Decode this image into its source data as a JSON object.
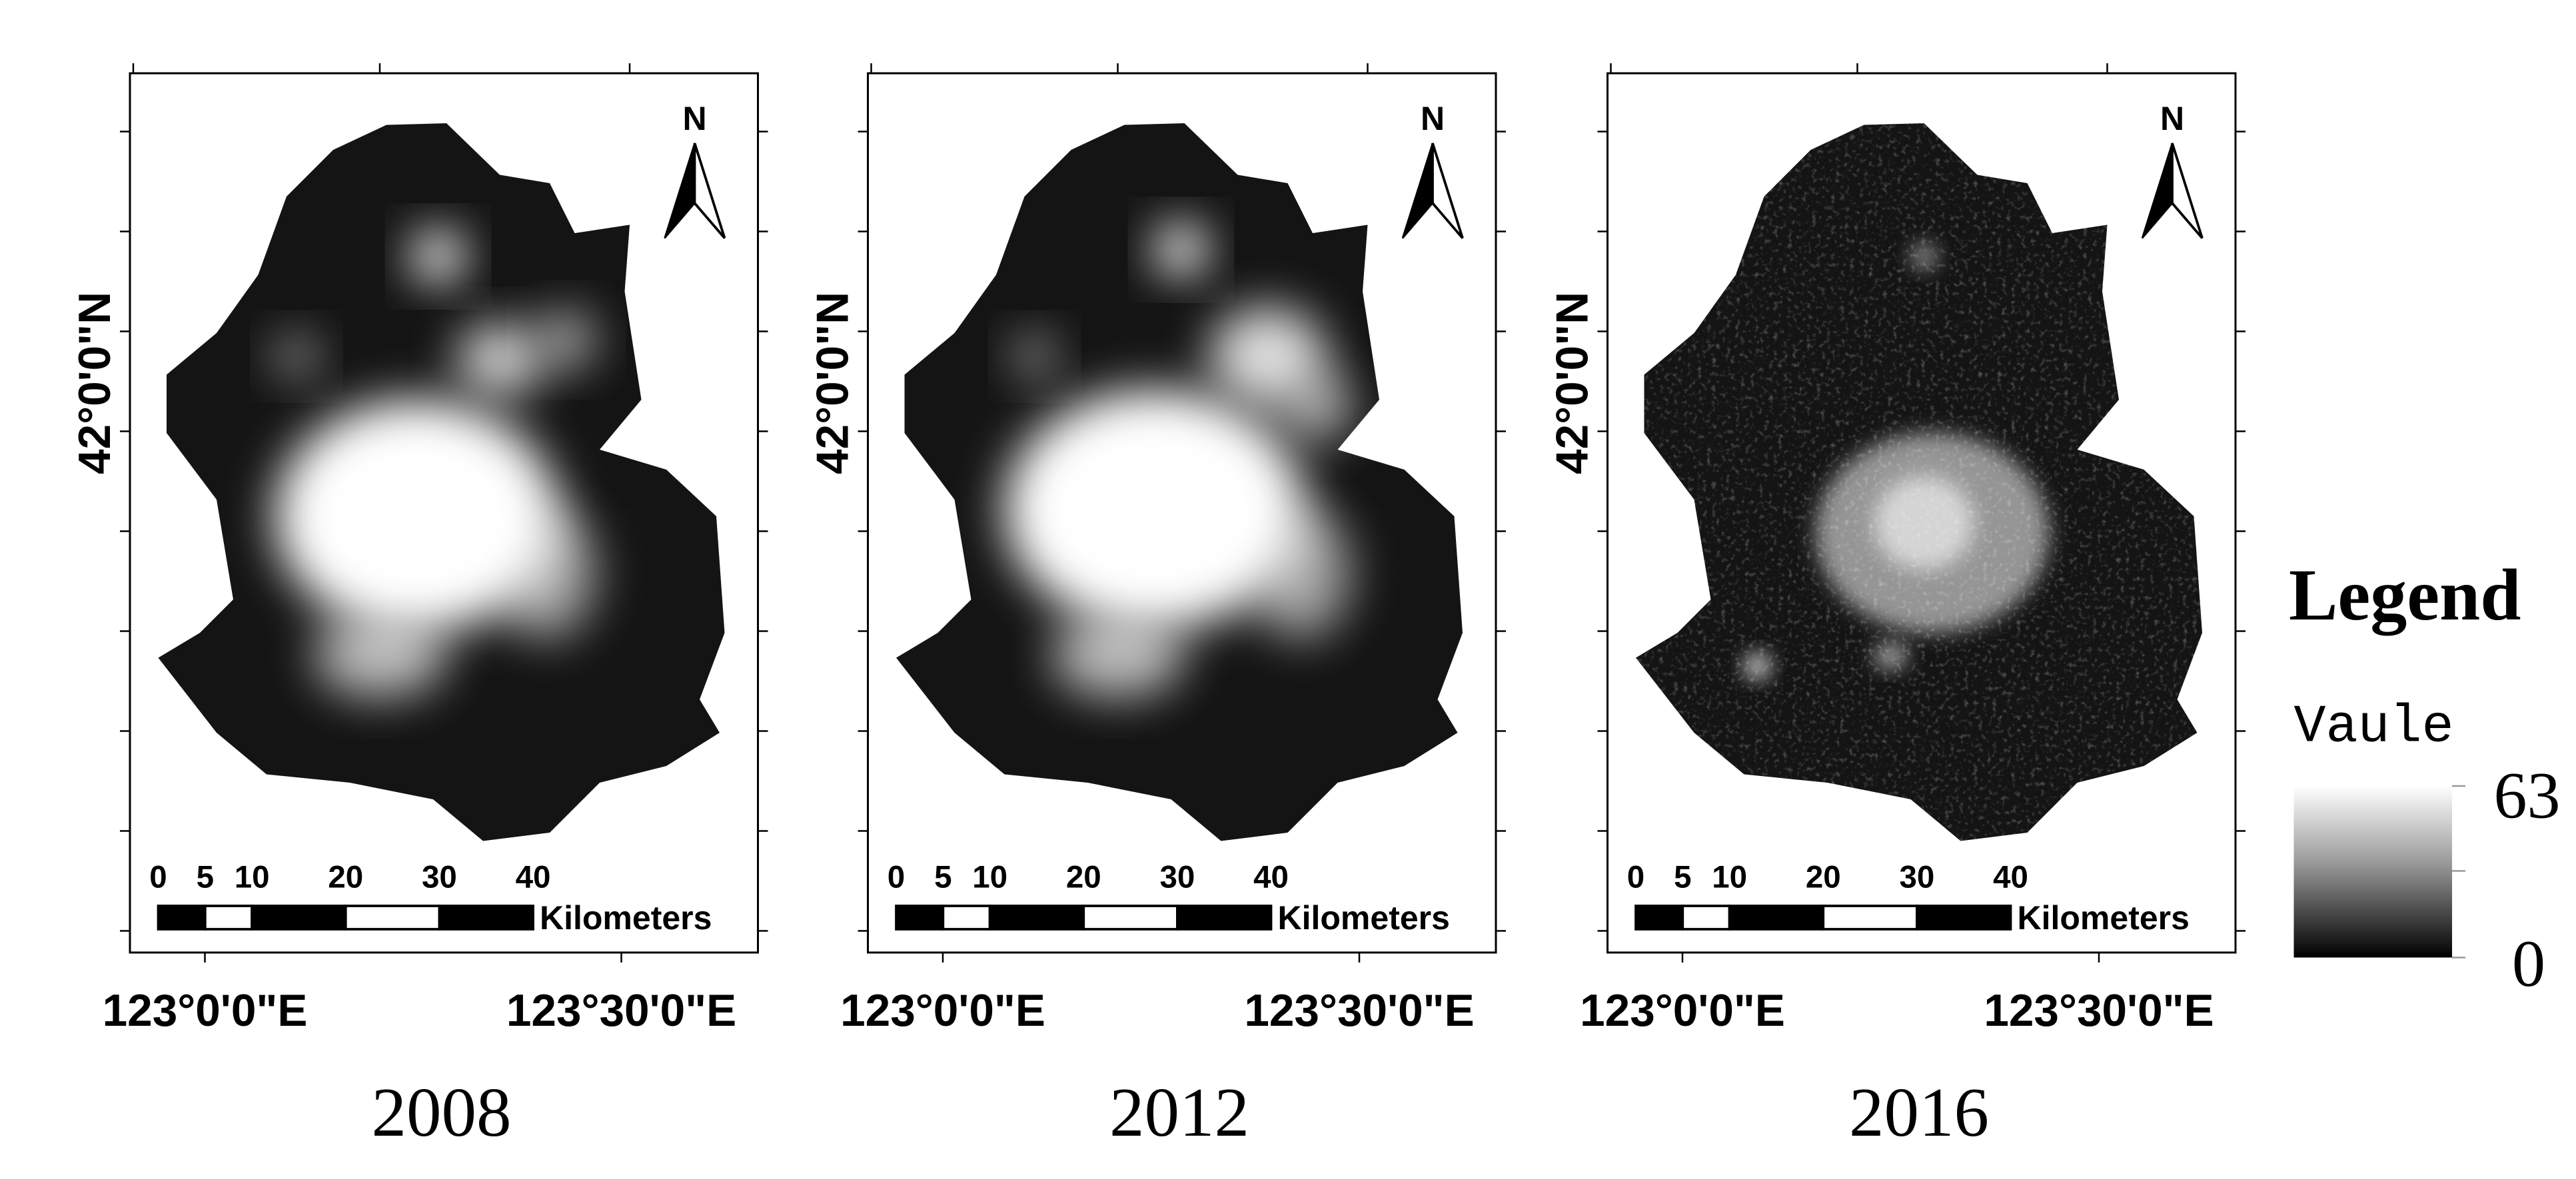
{
  "panels": [
    {
      "year": "2008",
      "lat_label": "42°0'0\"N",
      "lon_labels": [
        "123°0'0\"E",
        "123°30'0\"E"
      ],
      "north": "N",
      "scale_ticks": [
        0,
        5,
        10,
        20,
        30,
        40
      ],
      "scale_unit": "Kilometers"
    },
    {
      "year": "2012",
      "lat_label": "42°0'0\"N",
      "lon_labels": [
        "123°0'0\"E",
        "123°30'0\"E"
      ],
      "north": "N",
      "scale_ticks": [
        0,
        5,
        10,
        20,
        30,
        40
      ],
      "scale_unit": "Kilometers"
    },
    {
      "year": "2016",
      "lat_label": "42°0'0\"N",
      "lon_labels": [
        "123°0'0\"E",
        "123°30'0\"E"
      ],
      "north": "N",
      "scale_ticks": [
        0,
        5,
        10,
        20,
        30,
        40
      ],
      "scale_unit": "Kilometers"
    }
  ],
  "legend": {
    "title": "Legend",
    "field": "Vaule",
    "max": 63,
    "min": 0
  }
}
